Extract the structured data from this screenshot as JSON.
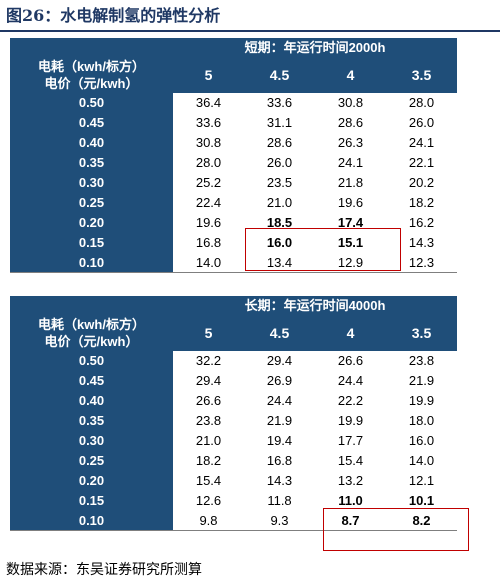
{
  "figure_title": "图26：水电解制氢的弹性分析",
  "row_label_line1": "电耗（kwh/标方）",
  "row_label_line2": "电价（元/kwh）",
  "columns": [
    "5",
    "4.5",
    "4",
    "3.5"
  ],
  "short_term": {
    "title": "短期：年运行时间2000h",
    "rows": [
      {
        "price": "0.50",
        "values": [
          "36.4",
          "33.6",
          "30.8",
          "28.0"
        ]
      },
      {
        "price": "0.45",
        "values": [
          "33.6",
          "31.1",
          "28.6",
          "26.0"
        ]
      },
      {
        "price": "0.40",
        "values": [
          "30.8",
          "28.6",
          "26.3",
          "24.1"
        ]
      },
      {
        "price": "0.35",
        "values": [
          "28.0",
          "26.0",
          "24.1",
          "22.1"
        ]
      },
      {
        "price": "0.30",
        "values": [
          "25.2",
          "23.5",
          "21.8",
          "20.2"
        ]
      },
      {
        "price": "0.25",
        "values": [
          "22.4",
          "21.0",
          "19.6",
          "18.2"
        ]
      },
      {
        "price": "0.20",
        "values": [
          "19.6",
          "18.5",
          "17.4",
          "16.2"
        ]
      },
      {
        "price": "0.15",
        "values": [
          "16.8",
          "16.0",
          "15.1",
          "14.3"
        ]
      },
      {
        "price": "0.10",
        "values": [
          "14.0",
          "13.4",
          "12.9",
          "12.3"
        ]
      }
    ]
  },
  "long_term": {
    "title": "长期：年运行时间4000h",
    "rows": [
      {
        "price": "0.50",
        "values": [
          "32.2",
          "29.4",
          "26.6",
          "23.8"
        ]
      },
      {
        "price": "0.45",
        "values": [
          "29.4",
          "26.9",
          "24.4",
          "21.9"
        ]
      },
      {
        "price": "0.40",
        "values": [
          "26.6",
          "24.4",
          "22.2",
          "19.9"
        ]
      },
      {
        "price": "0.35",
        "values": [
          "23.8",
          "21.9",
          "19.9",
          "18.0"
        ]
      },
      {
        "price": "0.30",
        "values": [
          "21.0",
          "19.4",
          "17.7",
          "16.0"
        ]
      },
      {
        "price": "0.25",
        "values": [
          "18.2",
          "16.8",
          "15.4",
          "14.0"
        ]
      },
      {
        "price": "0.20",
        "values": [
          "15.4",
          "14.3",
          "13.2",
          "12.1"
        ]
      },
      {
        "price": "0.15",
        "values": [
          "12.6",
          "11.8",
          "11.0",
          "10.1"
        ]
      },
      {
        "price": "0.10",
        "values": [
          "9.8",
          "9.3",
          "8.7",
          "8.2"
        ]
      }
    ]
  },
  "highlight_color": "#c00000",
  "header_color": "#1f4e79",
  "source": "数据来源：东吴证券研究所测算"
}
